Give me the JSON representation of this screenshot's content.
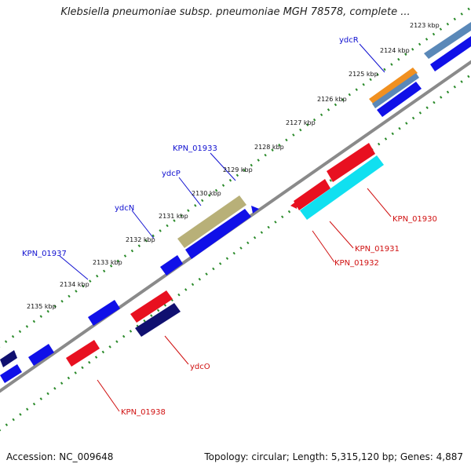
{
  "title": "Klebsiella pneumoniae subsp. pneumoniae MGH 78578, complete ...",
  "footer": {
    "accession": "Accession: NC_009648",
    "summary": "Topology: circular; Length: 5,315,120 bp; Genes: 4,887"
  },
  "colors": {
    "forward_gene": "#1010e8",
    "reverse_gene": "#e81020",
    "label_forward": "#1010d0",
    "label_reverse": "#d01010",
    "backbone": "#888888",
    "tick_dots": "#2a8a2a",
    "pseudogene": "#b8b078",
    "cyan_gene": "#10e0f0",
    "navy_gene": "#101070",
    "orange_gene": "#f09020",
    "steel_gene": "#5a88b8"
  },
  "ticks": [
    {
      "label": "2123 kbp"
    },
    {
      "label": "2124 kbp"
    },
    {
      "label": "2125 kbp"
    },
    {
      "label": "2126 kbp"
    },
    {
      "label": "2127 kbp"
    },
    {
      "label": "2128 kbp"
    },
    {
      "label": "2129 kbp"
    },
    {
      "label": "2130 kbp"
    },
    {
      "label": "2131 kbp"
    },
    {
      "label": "2132 kbp"
    },
    {
      "label": "2133 kbp"
    },
    {
      "label": "2134 kbp"
    },
    {
      "label": "2135 kbp"
    }
  ],
  "labels_forward": [
    {
      "text": "ydcR"
    },
    {
      "text": "KPN_01933"
    },
    {
      "text": "ydcP"
    },
    {
      "text": "ydcN"
    },
    {
      "text": "KPN_01937"
    }
  ],
  "labels_reverse": [
    {
      "text": "KPN_01930"
    },
    {
      "text": "KPN_01931"
    },
    {
      "text": "KPN_01932"
    },
    {
      "text": "ydcO"
    },
    {
      "text": "KPN_01938"
    }
  ]
}
